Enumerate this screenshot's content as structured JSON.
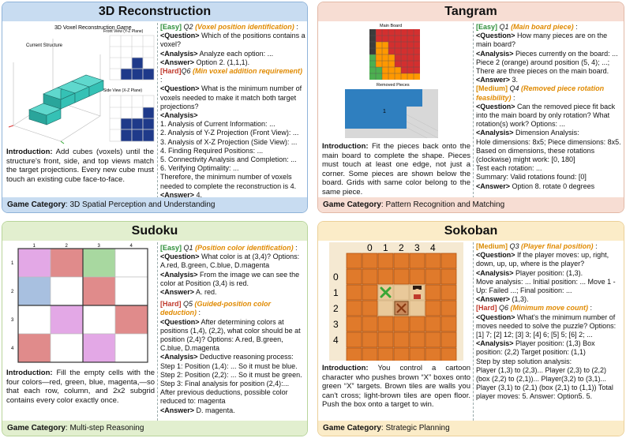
{
  "recon": {
    "title": "3D Reconstruction",
    "figure_title": "3D Voxel Reconstruction Game",
    "current_structure_label": "Current Structure",
    "front_view_label": "Front View (Y-Z Plane)",
    "side_view_label": "Side View (X-Z Plane)",
    "intro_label": "Introduction:",
    "intro_text": "Add cubes (voxels) until the structure's front, side, and top views match the target projections. Every new cube must touch an existing cube face-to-face.",
    "q1_level": "[Easy]",
    "q1_tag": "Q2",
    "q1_note": "(Voxel position identification)",
    "q1_question": "Which of the positions contains a voxel?",
    "q1_analysis": "Analyze each option: ...",
    "q1_answer": "Option 2. (1,1,1).",
    "q2_level": "[Hard]",
    "q2_tag": "Q6",
    "q2_note": "(Min voxel addition requirement)",
    "q2_question": "What is the minimum number of voxels needed to make it match both target projections?",
    "steps": [
      "1. Analysis of Current Information: ...",
      "2. Analysis of Y-Z Projection (Front View): ...",
      "3. Analysis of X-Z Projection (Side View): ...",
      "4. Finding Required Positions: ...",
      "5. Connectivity Analysis and Completion: ...",
      "6. Verifying Optimality: ..."
    ],
    "conclusion": "Therefore, the minimum number of voxels needed to complete the reconstruction is 4.",
    "q2_answer": "4.",
    "category_label": "Game Category",
    "category": ": 3D Spatial Perception and Understanding"
  },
  "tangram": {
    "title": "Tangram",
    "main_board_label": "Main Board",
    "removed_label": "Removed Pieces",
    "removed_piece_number": "1",
    "intro_label": "Introduction:",
    "intro_text": "Fit the pieces back onto the main board to complete the shape. Pieces must touch at least one edge, not just a corner. Some pieces are shown below the board. Grids with same color belong to the same piece.",
    "q1_level": "[Easy]",
    "q1_tag": "Q1",
    "q1_note": "(Main board piece)",
    "q1_question": "How many pieces are on the main board?",
    "q1_analysis": "Pieces currently on the board: ... Piece 2 (orange) around position (5, 4); ...; There are three pieces on the main board.",
    "q1_answer": "3.",
    "q2_level": "[Medium]",
    "q2_tag": "Q4",
    "q2_note": "(Removed piece rotation feasibility)",
    "q2_question": "Can the removed piece fit back into the main board by only rotation? What rotation(s) work? Options: ...",
    "q2_analysis": "Dimension Analysis:",
    "q2_lines": [
      "Hole dimensions: 8x5; Piece dimensions: 8x5.",
      "Based on dimensions, these rotations (clockwise) might work: [0, 180]",
      "Test each rotation: ...",
      "Summary:  Valid rotations found: [0]"
    ],
    "q2_answer": "Option 8. rotate 0 degrees",
    "category_label": "Game Category",
    "category": ": Pattern Recognition and Matching"
  },
  "sudoku": {
    "title": "Sudoku",
    "col_labels": [
      "1",
      "2",
      "3",
      "4"
    ],
    "row_labels": [
      "1",
      "2",
      "3",
      "4"
    ],
    "grid": [
      [
        "magenta",
        "red",
        "green",
        "white"
      ],
      [
        "blue",
        "white",
        "red",
        "white"
      ],
      [
        "white",
        "magenta",
        "white",
        "red"
      ],
      [
        "red",
        "white",
        "magenta",
        "white"
      ]
    ],
    "colors": {
      "magenta": "#e3a8e6",
      "red": "#e08b8b",
      "green": "#a8d8a0",
      "blue": "#a8c0e0",
      "white": "#ffffff"
    },
    "intro_label": "Introduction:",
    "intro_text": "Fill the empty cells with the four colors—red, green, blue, magenta,—so that each row, column, and 2x2 subgrid contains every color exactly once.",
    "q1_level": "[Easy]",
    "q1_tag": "Q1",
    "q1_note": "(Position color identification)",
    "q1_question": "What color is at (3,4)? Options: A.red, B.green, C.blue, D.magenta",
    "q1_analysis": "From the image we can see the color at Position (3,4) is red.",
    "q1_answer": "A. red.",
    "q2_level": "[Hard]",
    "q2_tag": "Q5",
    "q2_note": "(Guided-position color deduction)",
    "q2_question": "After determining colors at positions (1,4), (2,2), what color should be at position (2,4)? Options: A.red, B.green, C.blue, D.magenta",
    "q2_analysis": "Deductive reasoning process:",
    "q2_lines": [
      "Step 1: Position (1,4): ... So it must be blue.",
      "Step 2: Position (2,2): ... So it must be green.",
      "Step 3: Final analysis for position (2,4):...",
      "After previous deductions, possible color reduced to: magenta"
    ],
    "q2_answer": "D. magenta.",
    "category_label": "Game Category",
    "category": ": Multi-step Reasoning"
  },
  "sokoban": {
    "title": "Sokoban",
    "col_labels": [
      "0",
      "1",
      "2",
      "3",
      "4"
    ],
    "row_labels": [
      "0",
      "1",
      "2",
      "3",
      "4"
    ],
    "intro_label": "Introduction:",
    "intro_text": "You control a cartoon character who pushes brown “X” boxes onto green “X” targets. Brown tiles are walls you can't cross; light-brown tiles are open floor. Push the box onto a target to win.",
    "q1_level": "[Medium]",
    "q1_tag": "Q3",
    "q1_note": "(Player final position)",
    "q1_question": "If the player moves: up, right, down, up, up, where is the player?",
    "q1_analysis": "Player position: (1,3).",
    "q1_lines": [
      "Move analysis: ... Initial position: ... Move 1 - Up: Failed ...; Final position: ..."
    ],
    "q1_answer": "(1,3).",
    "q2_level": "[Hard]",
    "q2_tag": "Q6",
    "q2_note": "(Minimum move count)",
    "q2_question": "What's the minimum number of moves needed to solve the puzzle? Options: [1] 7; [2] 12; [3] 3; [4] 6; [5] 5; [6] 2; ...",
    "q2_analysis": "Player position: (1,3) Box position: (2,2) Target position: (1,1)",
    "q2_lines": [
      "Step by step solution analysis:",
      "Player (1,3) to (2,3)... Player (2,3) to (2,2) (box (2,2) to (2,1))... Player(3,2) to (3,1)... Player (3,1) to (2,1) (box (2,1) to (1,1)) Total player moves: 5. Answer: Option5. 5.",
      "Answer: Option5. 5."
    ],
    "category_label": "Game Category",
    "category": ": Strategic Planning"
  },
  "labels": {
    "question": "<Question>",
    "analysis": "<Analysis>",
    "answer": "<Answer>"
  }
}
